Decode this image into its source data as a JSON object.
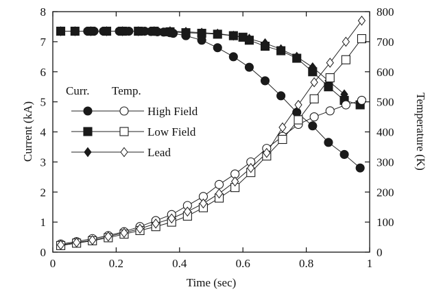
{
  "chart_data": {
    "type": "line",
    "xlabel": "Time (sec)",
    "ylabel": "Current (kA)",
    "y2label": "Temperature (K)",
    "xlim": [
      0,
      1
    ],
    "ylim": [
      0,
      8
    ],
    "y2lim": [
      0,
      800
    ],
    "xticks": [
      "0",
      "0.2",
      "0.4",
      "0.6",
      "0.8",
      "1"
    ],
    "yticks": [
      "0",
      "1",
      "2",
      "3",
      "4",
      "5",
      "6",
      "7",
      "8"
    ],
    "y2ticks": [
      "0",
      "100",
      "200",
      "300",
      "400",
      "500",
      "600",
      "700",
      "800"
    ],
    "grid": false,
    "legend": {
      "placement": "middle-left",
      "header_current": "Curr.",
      "header_temperature": "Temp.",
      "entries": [
        "High Field",
        "Low Field",
        "Lead"
      ]
    },
    "series": [
      {
        "name": "High Field",
        "quantity": "current",
        "axis": "left",
        "marker": "circle-filled",
        "x": [
          0.025,
          0.07,
          0.11,
          0.12,
          0.13,
          0.16,
          0.17,
          0.21,
          0.23,
          0.24,
          0.28,
          0.29,
          0.31,
          0.33,
          0.35,
          0.37,
          0.38,
          0.42,
          0.47,
          0.52,
          0.57,
          0.62,
          0.67,
          0.72,
          0.77,
          0.82,
          0.87,
          0.92,
          0.97
        ],
        "y": [
          7.35,
          7.35,
          7.35,
          7.35,
          7.35,
          7.35,
          7.35,
          7.35,
          7.35,
          7.35,
          7.35,
          7.35,
          7.34,
          7.33,
          7.32,
          7.3,
          7.28,
          7.2,
          7.05,
          6.8,
          6.5,
          6.15,
          5.7,
          5.2,
          4.65,
          4.2,
          3.65,
          3.25,
          2.8
        ]
      },
      {
        "name": "Low Field",
        "quantity": "current",
        "axis": "left",
        "marker": "square-filled",
        "x": [
          0.025,
          0.07,
          0.12,
          0.17,
          0.22,
          0.27,
          0.32,
          0.37,
          0.42,
          0.47,
          0.52,
          0.57,
          0.6,
          0.62,
          0.67,
          0.72,
          0.77,
          0.82,
          0.87,
          0.92,
          0.97
        ],
        "y": [
          7.35,
          7.35,
          7.35,
          7.35,
          7.35,
          7.35,
          7.35,
          7.33,
          7.3,
          7.28,
          7.25,
          7.2,
          7.15,
          7.05,
          6.85,
          6.7,
          6.45,
          6.0,
          5.5,
          5.05,
          4.9
        ]
      },
      {
        "name": "Lead",
        "quantity": "current",
        "axis": "left",
        "marker": "diamond-filled",
        "x": [
          0.025,
          0.07,
          0.12,
          0.17,
          0.22,
          0.27,
          0.32,
          0.37,
          0.42,
          0.47,
          0.52,
          0.57,
          0.62,
          0.67,
          0.72,
          0.77,
          0.82,
          0.87,
          0.92
        ],
        "y": [
          7.35,
          7.35,
          7.35,
          7.35,
          7.35,
          7.35,
          7.35,
          7.35,
          7.33,
          7.3,
          7.27,
          7.2,
          7.1,
          6.95,
          6.75,
          6.5,
          6.15,
          5.7,
          5.25
        ]
      },
      {
        "name": "High Field",
        "quantity": "temperature",
        "axis": "right",
        "marker": "circle-open",
        "x": [
          0.025,
          0.075,
          0.125,
          0.175,
          0.225,
          0.275,
          0.325,
          0.375,
          0.425,
          0.475,
          0.525,
          0.575,
          0.625,
          0.675,
          0.725,
          0.775,
          0.825,
          0.875,
          0.925,
          0.975
        ],
        "y": [
          27,
          35,
          45,
          55,
          68,
          85,
          105,
          125,
          155,
          185,
          225,
          260,
          300,
          345,
          385,
          425,
          450,
          470,
          490,
          505
        ]
      },
      {
        "name": "Low Field",
        "quantity": "temperature",
        "axis": "right",
        "marker": "square-open",
        "x": [
          0.025,
          0.075,
          0.125,
          0.175,
          0.225,
          0.275,
          0.325,
          0.375,
          0.425,
          0.475,
          0.525,
          0.575,
          0.625,
          0.675,
          0.725,
          0.775,
          0.825,
          0.875,
          0.925,
          0.975
        ],
        "y": [
          22,
          30,
          38,
          48,
          60,
          72,
          85,
          100,
          120,
          148,
          180,
          215,
          265,
          320,
          375,
          440,
          510,
          580,
          640,
          710
        ]
      },
      {
        "name": "Lead",
        "quantity": "temperature",
        "axis": "right",
        "marker": "diamond-open",
        "x": [
          0.025,
          0.075,
          0.125,
          0.175,
          0.225,
          0.275,
          0.325,
          0.375,
          0.425,
          0.475,
          0.525,
          0.575,
          0.625,
          0.675,
          0.725,
          0.775,
          0.825,
          0.875,
          0.925,
          0.975
        ],
        "y": [
          24,
          32,
          40,
          52,
          64,
          78,
          95,
          112,
          135,
          162,
          195,
          235,
          280,
          330,
          415,
          490,
          565,
          630,
          700,
          770
        ]
      }
    ]
  }
}
